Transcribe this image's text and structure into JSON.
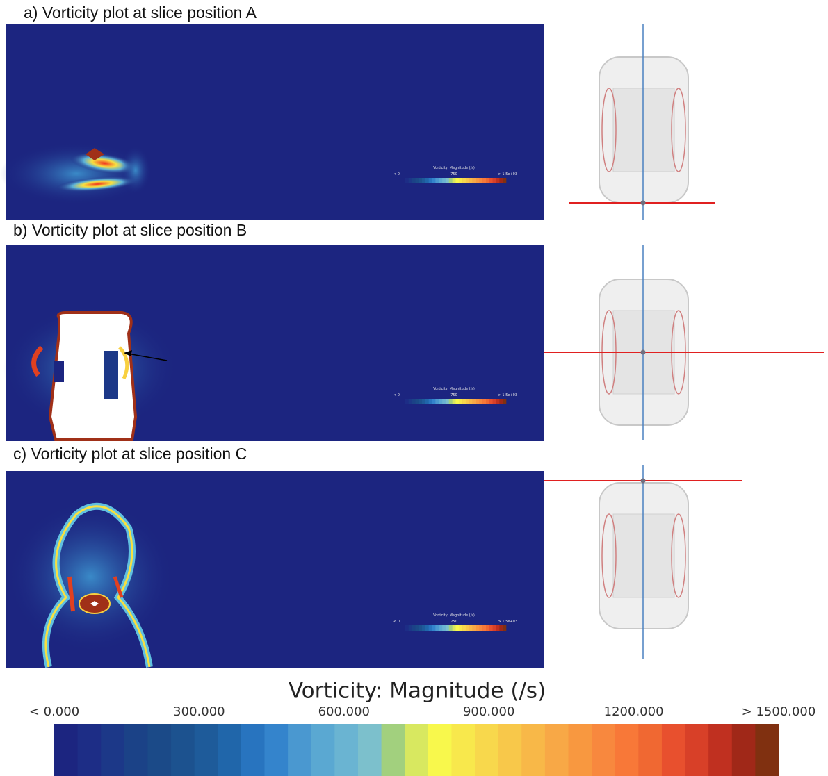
{
  "panels": [
    {
      "title": "a) Vorticity plot at slice position A",
      "inset_colorbar": {
        "title": "Vorticity: Magnitude (/s)",
        "labels": [
          "< 0",
          "750",
          "> 1.5e+03"
        ]
      }
    },
    {
      "title": "b) Vorticity plot at slice position B",
      "inset_colorbar": {
        "title": "Vorticity: Magnitude (/s)",
        "labels": [
          "< 0",
          "750",
          "> 1.5e+03"
        ]
      }
    },
    {
      "title": "c) Vorticity plot at slice position C",
      "inset_colorbar": {
        "title": "Vorticity: Magnitude (/s)",
        "labels": [
          "< 0",
          "750",
          "> 1.5e+03"
        ]
      }
    }
  ],
  "colorbar": {
    "title": "Vorticity: Magnitude (/s)",
    "range": [
      0,
      1500
    ],
    "ticks": [
      {
        "value": 0,
        "label": "< 0.000"
      },
      {
        "value": 300,
        "label": "300.000"
      },
      {
        "value": 600,
        "label": "600.000"
      },
      {
        "value": 900,
        "label": "900.000"
      },
      {
        "value": 1200,
        "label": "1200.000"
      },
      {
        "value": 1500,
        "label": "> 1500.000"
      }
    ],
    "colors": [
      "#1c2580",
      "#1d2d86",
      "#1c3888",
      "#1b4287",
      "#1b4a88",
      "#1c528f",
      "#1e5b9a",
      "#2066aa",
      "#2874bf",
      "#3484cc",
      "#4a98d0",
      "#5aa8d2",
      "#6ab4d2",
      "#7cc0cc",
      "#a2d07e",
      "#d8e860",
      "#f8f84c",
      "#f8e84c",
      "#f8d84c",
      "#f8c84a",
      "#f8b848",
      "#f8a846",
      "#f89840",
      "#f8883e",
      "#f87838",
      "#f06832",
      "#e8502e",
      "#d84028",
      "#c03020",
      "#a02818",
      "#803010"
    ]
  }
}
